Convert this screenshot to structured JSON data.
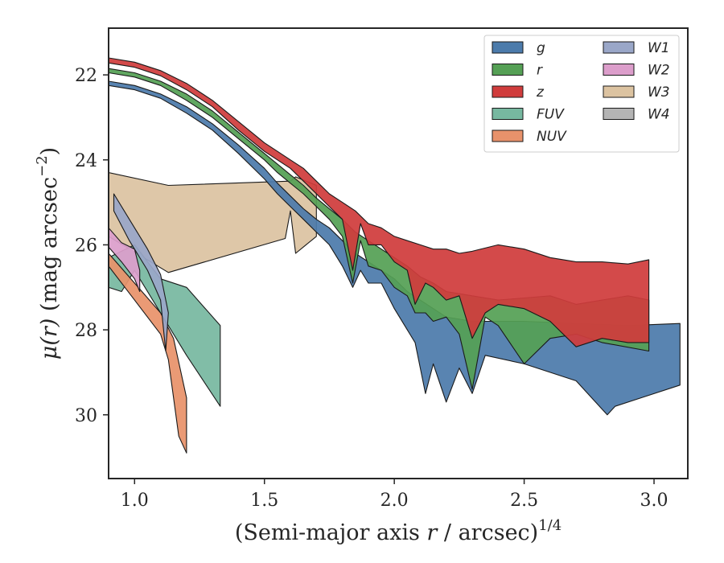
{
  "chart_data": {
    "type": "area",
    "xlabel_prefix": "(Semi-major axis ",
    "xlabel_var": "r",
    "xlabel_suffix": " / arcsec)",
    "xlabel_sup": "1/4",
    "ylabel_mu": "μ",
    "ylabel_arg": "(r)",
    "ylabel_unit": " (mag arcsec",
    "ylabel_sup": "−2",
    "ylabel_close": ")",
    "xlim": [
      0.9,
      3.13
    ],
    "ylim": [
      31.5,
      20.9
    ],
    "y_inverted": true,
    "x_ticks": [
      1.0,
      1.5,
      2.0,
      2.5,
      3.0
    ],
    "x_tick_labels": [
      "1.0",
      "1.5",
      "2.0",
      "2.5",
      "3.0"
    ],
    "y_ticks": [
      22,
      24,
      26,
      28,
      30
    ],
    "y_tick_labels": [
      "22",
      "24",
      "26",
      "28",
      "30"
    ],
    "grid": false,
    "legend_position": "upper right",
    "legend_columns": 2,
    "series": [
      {
        "name": "W3",
        "color": "#dcc3a1",
        "upper": [
          [
            0.9,
            24.3
          ],
          [
            1.13,
            24.6
          ],
          [
            1.6,
            24.5
          ],
          [
            1.62,
            24.4
          ],
          [
            1.7,
            24.6
          ]
        ],
        "lower": [
          [
            0.9,
            25.8
          ],
          [
            1.13,
            26.65
          ],
          [
            1.58,
            25.85
          ],
          [
            1.6,
            25.2
          ],
          [
            1.62,
            26.2
          ],
          [
            1.7,
            25.8
          ]
        ]
      },
      {
        "name": "g",
        "color": "#4c7bab",
        "upper": [
          [
            0.9,
            22.15
          ],
          [
            1.0,
            22.25
          ],
          [
            1.1,
            22.45
          ],
          [
            1.2,
            22.75
          ],
          [
            1.3,
            23.15
          ],
          [
            1.4,
            23.65
          ],
          [
            1.5,
            24.2
          ],
          [
            1.55,
            24.55
          ],
          [
            1.6,
            24.85
          ],
          [
            1.65,
            25.15
          ],
          [
            1.7,
            25.4
          ],
          [
            1.75,
            25.6
          ],
          [
            1.8,
            25.9
          ],
          [
            1.85,
            26.2
          ],
          [
            1.9,
            26.4
          ],
          [
            1.95,
            26.6
          ],
          [
            2.0,
            26.8
          ],
          [
            2.05,
            27.1
          ],
          [
            2.1,
            27.3
          ],
          [
            2.15,
            27.5
          ],
          [
            2.2,
            27.7
          ],
          [
            2.3,
            27.8
          ],
          [
            2.4,
            27.8
          ],
          [
            2.5,
            27.8
          ],
          [
            2.7,
            27.85
          ],
          [
            2.9,
            27.9
          ],
          [
            3.1,
            27.85
          ]
        ],
        "lower": [
          [
            0.9,
            22.25
          ],
          [
            1.0,
            22.35
          ],
          [
            1.1,
            22.55
          ],
          [
            1.2,
            22.9
          ],
          [
            1.3,
            23.3
          ],
          [
            1.4,
            23.85
          ],
          [
            1.5,
            24.45
          ],
          [
            1.55,
            24.8
          ],
          [
            1.6,
            25.1
          ],
          [
            1.65,
            25.4
          ],
          [
            1.7,
            25.7
          ],
          [
            1.75,
            26.0
          ],
          [
            1.8,
            26.5
          ],
          [
            1.84,
            27.0
          ],
          [
            1.87,
            26.6
          ],
          [
            1.9,
            26.9
          ],
          [
            1.95,
            26.9
          ],
          [
            2.0,
            27.5
          ],
          [
            2.05,
            28.0
          ],
          [
            2.08,
            28.3
          ],
          [
            2.12,
            29.5
          ],
          [
            2.15,
            28.8
          ],
          [
            2.2,
            29.7
          ],
          [
            2.25,
            28.9
          ],
          [
            2.3,
            29.5
          ],
          [
            2.35,
            28.6
          ],
          [
            2.5,
            28.8
          ],
          [
            2.7,
            29.2
          ],
          [
            2.82,
            30.0
          ],
          [
            2.85,
            29.8
          ],
          [
            2.95,
            29.6
          ],
          [
            3.1,
            29.3
          ]
        ]
      },
      {
        "name": "r",
        "color": "#55a055",
        "upper": [
          [
            0.9,
            21.85
          ],
          [
            1.0,
            21.95
          ],
          [
            1.1,
            22.15
          ],
          [
            1.2,
            22.45
          ],
          [
            1.3,
            22.85
          ],
          [
            1.4,
            23.35
          ],
          [
            1.5,
            23.85
          ],
          [
            1.55,
            24.1
          ],
          [
            1.6,
            24.35
          ],
          [
            1.65,
            24.6
          ],
          [
            1.7,
            24.9
          ],
          [
            1.75,
            25.15
          ],
          [
            1.8,
            25.4
          ],
          [
            1.85,
            25.7
          ],
          [
            1.9,
            25.9
          ],
          [
            1.95,
            26.1
          ],
          [
            2.0,
            26.3
          ],
          [
            2.05,
            26.5
          ],
          [
            2.1,
            26.75
          ],
          [
            2.15,
            26.9
          ],
          [
            2.2,
            27.1
          ],
          [
            2.3,
            27.2
          ],
          [
            2.4,
            27.3
          ],
          [
            2.5,
            27.25
          ],
          [
            2.6,
            27.2
          ],
          [
            2.7,
            27.4
          ],
          [
            2.8,
            27.3
          ],
          [
            2.9,
            27.2
          ],
          [
            2.98,
            27.3
          ]
        ],
        "lower": [
          [
            0.9,
            21.95
          ],
          [
            1.0,
            22.05
          ],
          [
            1.1,
            22.25
          ],
          [
            1.2,
            22.6
          ],
          [
            1.3,
            23.0
          ],
          [
            1.4,
            23.5
          ],
          [
            1.5,
            24.0
          ],
          [
            1.55,
            24.3
          ],
          [
            1.6,
            24.55
          ],
          [
            1.65,
            24.8
          ],
          [
            1.7,
            25.1
          ],
          [
            1.75,
            25.4
          ],
          [
            1.8,
            25.8
          ],
          [
            1.84,
            26.9
          ],
          [
            1.87,
            25.9
          ],
          [
            1.9,
            26.5
          ],
          [
            1.95,
            26.6
          ],
          [
            2.0,
            27.0
          ],
          [
            2.05,
            27.2
          ],
          [
            2.08,
            27.6
          ],
          [
            2.12,
            27.6
          ],
          [
            2.15,
            27.8
          ],
          [
            2.2,
            27.7
          ],
          [
            2.25,
            28.1
          ],
          [
            2.3,
            29.4
          ],
          [
            2.35,
            27.7
          ],
          [
            2.4,
            27.9
          ],
          [
            2.5,
            28.8
          ],
          [
            2.6,
            28.2
          ],
          [
            2.7,
            28.1
          ],
          [
            2.8,
            28.3
          ],
          [
            2.98,
            28.5
          ]
        ]
      },
      {
        "name": "z",
        "color": "#d03c3c",
        "upper": [
          [
            0.9,
            21.6
          ],
          [
            1.0,
            21.7
          ],
          [
            1.1,
            21.9
          ],
          [
            1.2,
            22.2
          ],
          [
            1.3,
            22.6
          ],
          [
            1.4,
            23.1
          ],
          [
            1.5,
            23.6
          ],
          [
            1.55,
            23.8
          ],
          [
            1.6,
            24.0
          ],
          [
            1.65,
            24.2
          ],
          [
            1.7,
            24.5
          ],
          [
            1.75,
            24.8
          ],
          [
            1.8,
            25.0
          ],
          [
            1.85,
            25.2
          ],
          [
            1.9,
            25.5
          ],
          [
            1.95,
            25.6
          ],
          [
            2.0,
            25.8
          ],
          [
            2.05,
            25.9
          ],
          [
            2.1,
            26.0
          ],
          [
            2.15,
            26.1
          ],
          [
            2.2,
            26.1
          ],
          [
            2.25,
            26.2
          ],
          [
            2.3,
            26.15
          ],
          [
            2.4,
            26.0
          ],
          [
            2.5,
            26.1
          ],
          [
            2.6,
            26.3
          ],
          [
            2.7,
            26.4
          ],
          [
            2.8,
            26.4
          ],
          [
            2.9,
            26.45
          ],
          [
            2.98,
            26.35
          ]
        ],
        "lower": [
          [
            0.9,
            21.72
          ],
          [
            1.0,
            21.82
          ],
          [
            1.1,
            22.02
          ],
          [
            1.2,
            22.35
          ],
          [
            1.3,
            22.75
          ],
          [
            1.4,
            23.3
          ],
          [
            1.5,
            23.8
          ],
          [
            1.55,
            24.0
          ],
          [
            1.6,
            24.2
          ],
          [
            1.65,
            24.5
          ],
          [
            1.7,
            24.8
          ],
          [
            1.75,
            25.1
          ],
          [
            1.8,
            25.4
          ],
          [
            1.84,
            26.6
          ],
          [
            1.87,
            25.5
          ],
          [
            1.9,
            26.0
          ],
          [
            1.95,
            26.0
          ],
          [
            2.0,
            26.4
          ],
          [
            2.05,
            26.6
          ],
          [
            2.08,
            27.4
          ],
          [
            2.12,
            26.9
          ],
          [
            2.15,
            27.0
          ],
          [
            2.2,
            27.3
          ],
          [
            2.25,
            27.2
          ],
          [
            2.3,
            28.2
          ],
          [
            2.35,
            27.6
          ],
          [
            2.4,
            27.4
          ],
          [
            2.5,
            27.5
          ],
          [
            2.6,
            27.8
          ],
          [
            2.7,
            28.4
          ],
          [
            2.8,
            28.2
          ],
          [
            2.9,
            28.3
          ],
          [
            2.98,
            28.3
          ]
        ]
      },
      {
        "name": "FUV",
        "color": "#77b8a0",
        "upper": [
          [
            0.9,
            26.3
          ],
          [
            1.0,
            26.0
          ],
          [
            1.1,
            26.8
          ],
          [
            1.2,
            27.0
          ],
          [
            1.33,
            27.9
          ]
        ],
        "lower": [
          [
            0.9,
            27.0
          ],
          [
            0.95,
            27.1
          ],
          [
            1.0,
            26.6
          ],
          [
            1.1,
            27.6
          ],
          [
            1.2,
            28.6
          ],
          [
            1.33,
            29.8
          ]
        ]
      },
      {
        "name": "NUV",
        "color": "#e8926b",
        "upper": [
          [
            0.9,
            26.2
          ],
          [
            1.0,
            26.9
          ],
          [
            1.1,
            27.6
          ],
          [
            1.15,
            28.2
          ],
          [
            1.2,
            29.6
          ]
        ],
        "lower": [
          [
            0.9,
            26.5
          ],
          [
            1.0,
            27.3
          ],
          [
            1.1,
            28.1
          ],
          [
            1.13,
            28.7
          ],
          [
            1.17,
            30.5
          ],
          [
            1.2,
            30.9
          ]
        ]
      },
      {
        "name": "W1",
        "color": "#9aa7c8",
        "upper": [
          [
            0.92,
            24.8
          ],
          [
            0.98,
            25.4
          ],
          [
            1.05,
            26.1
          ],
          [
            1.1,
            26.7
          ],
          [
            1.13,
            27.6
          ]
        ],
        "lower": [
          [
            0.92,
            25.2
          ],
          [
            0.98,
            25.9
          ],
          [
            1.05,
            26.6
          ],
          [
            1.1,
            27.3
          ],
          [
            1.12,
            28.5
          ]
        ]
      },
      {
        "name": "W2",
        "color": "#dc9ecb",
        "upper": [
          [
            0.9,
            25.6
          ],
          [
            0.95,
            25.95
          ],
          [
            1.0,
            26.1
          ],
          [
            1.02,
            26.6
          ]
        ],
        "lower": [
          [
            0.9,
            26.05
          ],
          [
            0.95,
            26.4
          ],
          [
            1.0,
            26.8
          ],
          [
            1.02,
            27.1
          ]
        ]
      },
      {
        "name": "W4",
        "color": "#b4b4b4",
        "upper": [],
        "lower": []
      }
    ],
    "legend_order": [
      "g",
      "r",
      "z",
      "FUV",
      "NUV",
      "W1",
      "W2",
      "W3",
      "W4"
    ]
  }
}
